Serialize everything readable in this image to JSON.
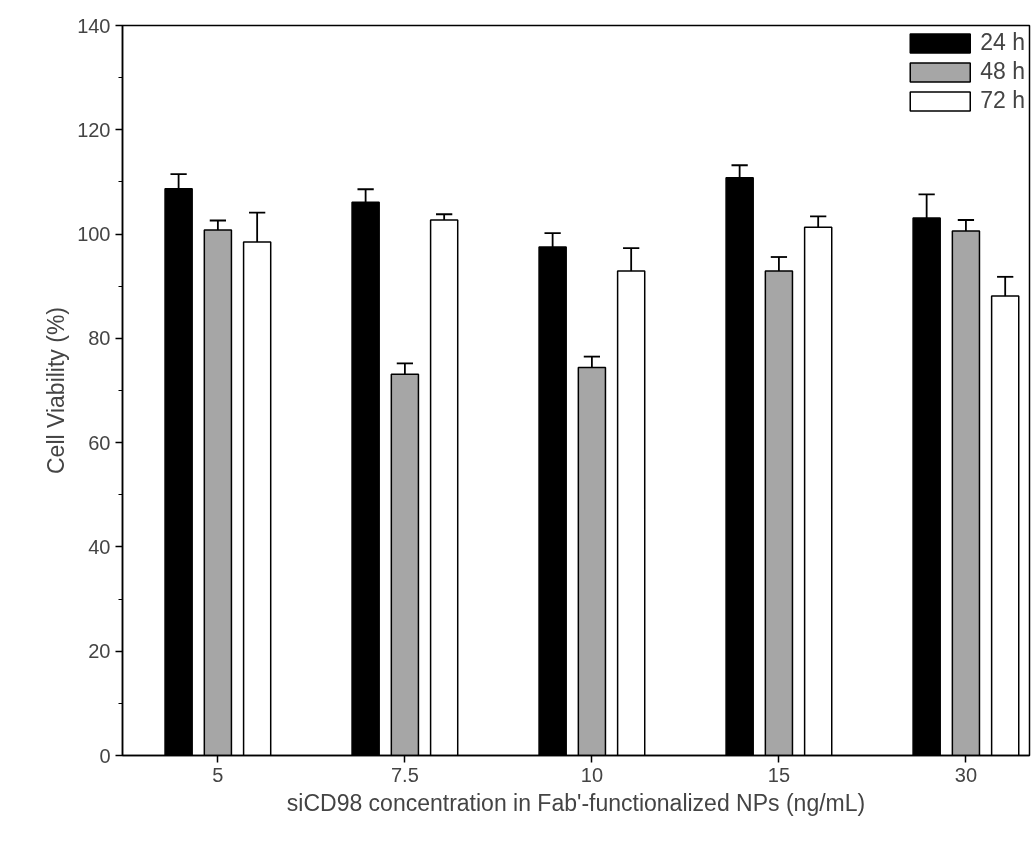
{
  "chart_data": {
    "type": "bar",
    "xlabel": "siCD98 concentration in Fab'-functionalized NPs (ng/mL)",
    "ylabel": "Cell Viability (%)",
    "categories": [
      "5",
      "7.5",
      "10",
      "15",
      "30"
    ],
    "series": [
      {
        "name": "24 h",
        "color": "#000000",
        "values": [
          108.7,
          106.1,
          97.5,
          110.8,
          103.1
        ],
        "errors": [
          [
            108.7,
            111.5
          ],
          [
            106.1,
            108.6
          ],
          [
            97.5,
            100.2
          ],
          [
            110.8,
            113.2
          ],
          [
            103.1,
            107.6
          ]
        ]
      },
      {
        "name": "48 h",
        "color": "#a6a6a6",
        "values": [
          100.8,
          73.1,
          74.4,
          92.9,
          100.6
        ],
        "errors": [
          [
            100.8,
            102.6
          ],
          [
            73.1,
            75.2
          ],
          [
            74.4,
            76.5
          ],
          [
            92.9,
            95.6
          ],
          [
            100.6,
            102.7
          ]
        ]
      },
      {
        "name": "72 h",
        "color": "#ffffff",
        "values": [
          98.5,
          102.7,
          92.9,
          101.3,
          88.1
        ],
        "errors": [
          [
            98.5,
            104.1
          ],
          [
            102.7,
            103.8
          ],
          [
            92.9,
            97.3
          ],
          [
            101.3,
            103.4
          ],
          [
            88.1,
            91.8
          ]
        ]
      }
    ],
    "ylim": [
      0,
      140
    ],
    "yticks": [
      0,
      20,
      40,
      60,
      80,
      100,
      120,
      140
    ],
    "grid": false,
    "legend": "top right"
  }
}
